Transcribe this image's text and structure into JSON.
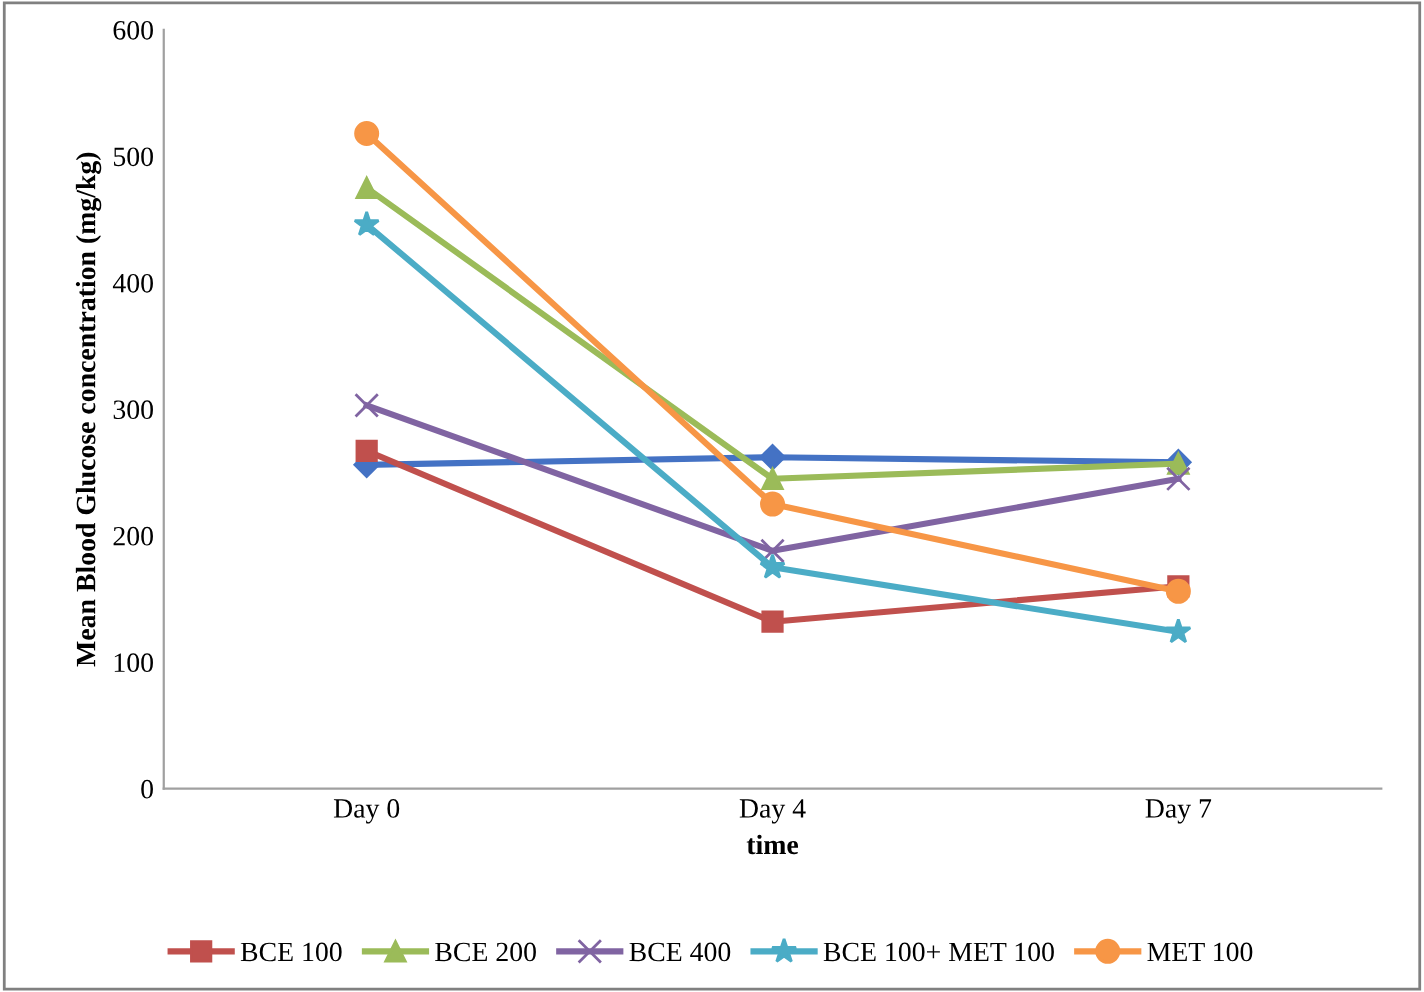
{
  "chart_data": {
    "type": "line",
    "xlabel": "time",
    "ylabel": "Mean Blood Glucose concentration (mg/kg)",
    "categories": [
      "Day 0",
      "Day 4",
      "Day 7"
    ],
    "series": [
      {
        "color": "#4472c4",
        "marker": "diamond",
        "values": [
          256,
          262,
          258
        ]
      },
      {
        "name": "BCE 100",
        "color": "#c0504d",
        "marker": "square",
        "values": [
          267,
          132,
          160
        ]
      },
      {
        "name": "BCE 200",
        "color": "#9bbb59",
        "marker": "triangle",
        "values": [
          475,
          245,
          257
        ]
      },
      {
        "name": "BCE 400",
        "color": "#8064a2",
        "marker": "cross",
        "values": [
          303,
          188,
          245
        ]
      },
      {
        "name": "BCE 100+ MET 100",
        "color": "#4bacc6",
        "marker": "star",
        "values": [
          446,
          175,
          124
        ]
      },
      {
        "name": "MET 100",
        "color": "#f79646",
        "marker": "circle",
        "values": [
          518,
          225,
          156
        ]
      }
    ],
    "ylim": [
      0,
      600
    ],
    "yticks": [
      0,
      100,
      200,
      300,
      400,
      500,
      600
    ],
    "grid": false,
    "legend": "bottom",
    "line_style": "solid"
  }
}
